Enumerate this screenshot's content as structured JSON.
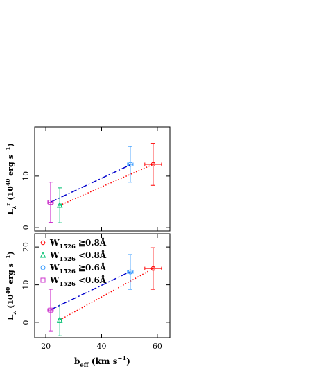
{
  "chart_data": [
    {
      "type": "scatter",
      "ylabel": [
        {
          "text": "L"
        },
        {
          "text": "λ",
          "shift": "sub"
        },
        {
          "text": "r",
          "shift": "sup"
        },
        {
          "text": " (10"
        },
        {
          "text": "40",
          "shift": "sup"
        },
        {
          "text": " erg s"
        },
        {
          "text": "−1",
          "shift": "sup"
        },
        {
          "text": ")"
        }
      ],
      "xlim": [
        16,
        64.5
      ],
      "ylim": [
        -0.7,
        19.6
      ],
      "xticks": [
        20,
        40,
        60
      ],
      "yticks": [
        0,
        10
      ],
      "show_xtick_labels": false,
      "lines": [
        {
          "color": "#0000cc",
          "style": "dashdot",
          "x": [
            22,
            50.3
          ],
          "values": [
            5,
            12.2
          ]
        },
        {
          "color": "#ff0000",
          "style": "dotted",
          "x": [
            25,
            58.5
          ],
          "values": [
            4.3,
            12.3
          ]
        }
      ],
      "series": [
        {
          "color": "#ff0000",
          "marker": "hexagon",
          "x": [
            58.5
          ],
          "values": [
            12.3
          ],
          "xerr": [
            3
          ],
          "yerr": [
            4.1
          ]
        },
        {
          "color": "#00c070",
          "marker": "triangle",
          "x": [
            25
          ],
          "values": [
            4.3
          ],
          "xerr": [
            0.6
          ],
          "yerr": [
            3.4
          ]
        },
        {
          "color": "#3399ff",
          "marker": "circle",
          "x": [
            50.3
          ],
          "values": [
            12.3
          ],
          "xerr": [
            1
          ],
          "yerr": [
            3.5
          ]
        },
        {
          "color": "#cc33cc",
          "marker": "square",
          "x": [
            21.7
          ],
          "values": [
            4.9
          ],
          "xerr": [
            1
          ],
          "yerr": [
            3.9
          ]
        }
      ]
    },
    {
      "type": "scatter",
      "ylabel": [
        {
          "text": "L"
        },
        {
          "text": "λ",
          "shift": "sub"
        },
        {
          "text": " (10"
        },
        {
          "text": "40",
          "shift": "sup"
        },
        {
          "text": " erg s"
        },
        {
          "text": "−1",
          "shift": "sup"
        },
        {
          "text": ")"
        }
      ],
      "xlabel": [
        {
          "text": "b"
        },
        {
          "text": "eff",
          "shift": "sub"
        },
        {
          "text": " (km s"
        },
        {
          "text": "−1",
          "shift": "sup"
        },
        {
          "text": ")"
        }
      ],
      "xlim": [
        16,
        64.5
      ],
      "ylim": [
        -4,
        23.5
      ],
      "xticks": [
        20,
        40,
        60
      ],
      "yticks": [
        0,
        10,
        20
      ],
      "show_xtick_labels": true,
      "legend": "upper left",
      "lines": [
        {
          "color": "#0000cc",
          "style": "dashdot",
          "x": [
            22,
            50.3
          ],
          "values": [
            3.5,
            13.5
          ]
        },
        {
          "color": "#ff0000",
          "style": "dotted",
          "x": [
            25,
            58.5
          ],
          "values": [
            0.7,
            14.3
          ]
        }
      ],
      "series": [
        {
          "label": [
            {
              "text": "W"
            },
            {
              "text": "1526",
              "shift": "sub"
            },
            {
              "text": " ≧0.8Å"
            }
          ],
          "color": "#ff0000",
          "marker": "hexagon",
          "x": [
            58.5
          ],
          "values": [
            14.3
          ],
          "xerr": [
            3
          ],
          "yerr": [
            5.5
          ]
        },
        {
          "label": [
            {
              "text": "W"
            },
            {
              "text": "1526",
              "shift": "sub"
            },
            {
              "text": " <0.8Å"
            }
          ],
          "color": "#00c070",
          "marker": "triangle",
          "x": [
            25
          ],
          "values": [
            0.7
          ],
          "xerr": [
            0.6
          ],
          "yerr": [
            4.2
          ]
        },
        {
          "label": [
            {
              "text": "W"
            },
            {
              "text": "1526",
              "shift": "sub"
            },
            {
              "text": " ≧0.6Å"
            }
          ],
          "color": "#3399ff",
          "marker": "circle",
          "x": [
            50.3
          ],
          "values": [
            13.4
          ],
          "xerr": [
            1
          ],
          "yerr": [
            4.6
          ]
        },
        {
          "label": [
            {
              "text": "W"
            },
            {
              "text": "1526",
              "shift": "sub"
            },
            {
              "text": " <0.6Å"
            }
          ],
          "color": "#cc33cc",
          "marker": "square",
          "x": [
            21.7
          ],
          "values": [
            3.3
          ],
          "xerr": [
            1
          ],
          "yerr": [
            5.5
          ]
        }
      ]
    }
  ]
}
